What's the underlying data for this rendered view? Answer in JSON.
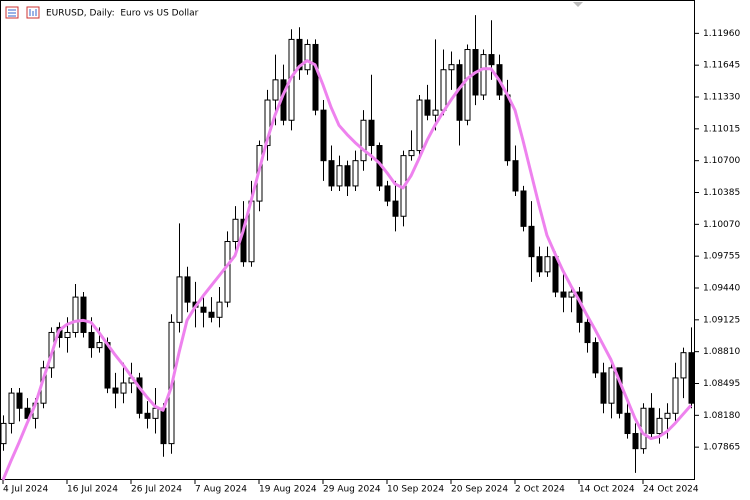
{
  "chart_data": {
    "type": "candlestick",
    "title": "EURUSD, Daily:  Euro vs US Dollar",
    "categories": [
      "4 Jul 2024",
      null,
      null,
      null,
      null,
      null,
      null,
      null,
      "16 Jul 2024",
      null,
      null,
      null,
      null,
      null,
      null,
      null,
      "26 Jul 2024",
      null,
      null,
      null,
      null,
      null,
      null,
      null,
      "7 Aug 2024",
      null,
      null,
      null,
      null,
      null,
      null,
      null,
      "19 Aug 2024",
      null,
      null,
      null,
      null,
      null,
      null,
      null,
      "29 Aug 2024",
      null,
      null,
      null,
      null,
      null,
      null,
      null,
      "10 Sep 2024",
      null,
      null,
      null,
      null,
      null,
      null,
      null,
      "20 Sep 2024",
      null,
      null,
      null,
      null,
      null,
      null,
      null,
      "2 Oct 2024",
      null,
      null,
      null,
      null,
      null,
      null,
      null,
      "14 Oct 2024",
      null,
      null,
      null,
      null,
      null,
      null,
      null,
      "24 Oct 2024",
      null,
      null,
      null,
      null,
      null,
      null
    ],
    "open": [
      1.079,
      1.081,
      1.084,
      1.0825,
      1.0815,
      1.083,
      1.0865,
      1.0905,
      1.0895,
      1.09,
      1.0935,
      1.09,
      1.0885,
      1.089,
      1.0845,
      1.084,
      1.085,
      1.0855,
      1.082,
      1.0815,
      1.0825,
      1.079,
      1.091,
      1.0955,
      1.093,
      1.0925,
      1.092,
      1.0915,
      1.093,
      1.099,
      1.1012,
      1.097,
      1.103,
      1.1085,
      1.113,
      1.115,
      1.111,
      1.119,
      1.116,
      1.1185,
      1.112,
      1.107,
      1.1045,
      1.1065,
      1.1045,
      1.107,
      1.111,
      1.1085,
      1.1045,
      1.103,
      1.1015,
      1.1075,
      1.108,
      1.113,
      1.1115,
      1.112,
      1.116,
      1.1165,
      1.111,
      1.118,
      1.1135,
      1.1175,
      1.1165,
      1.1135,
      1.107,
      1.104,
      1.1005,
      1.0975,
      1.096,
      1.0975,
      1.094,
      1.0935,
      1.094,
      1.091,
      1.089,
      1.086,
      1.083,
      1.0865,
      1.082,
      1.08,
      1.0785,
      1.0825,
      1.08,
      1.0815,
      1.082,
      1.0855,
      1.088
    ],
    "high": [
      1.0818,
      1.0845,
      1.0845,
      1.0835,
      1.0835,
      1.0872,
      1.0905,
      1.091,
      1.0915,
      1.0948,
      1.094,
      1.0915,
      1.0905,
      1.0895,
      1.086,
      1.087,
      1.087,
      1.086,
      1.0832,
      1.0845,
      1.083,
      1.0918,
      1.1008,
      1.0965,
      1.095,
      1.0935,
      1.0935,
      1.0945,
      1.1,
      1.1025,
      1.103,
      1.105,
      1.109,
      1.114,
      1.1175,
      1.1165,
      1.12,
      1.1202,
      1.119,
      1.119,
      1.113,
      1.1085,
      1.1075,
      1.107,
      1.108,
      1.112,
      1.1155,
      1.1088,
      1.105,
      1.105,
      1.108,
      1.11,
      1.1135,
      1.1145,
      1.119,
      1.118,
      1.1178,
      1.117,
      1.1185,
      1.1214,
      1.118,
      1.1209,
      1.1175,
      1.115,
      1.1085,
      1.1045,
      1.103,
      1.0985,
      1.0985,
      1.098,
      1.096,
      1.0945,
      1.0945,
      1.0915,
      1.0895,
      1.087,
      1.087,
      1.0865,
      1.083,
      1.081,
      1.083,
      1.084,
      1.0825,
      1.083,
      1.087,
      1.0885,
      1.0905
    ],
    "low": [
      1.0783,
      1.08,
      1.0812,
      1.081,
      1.0805,
      1.0825,
      1.0855,
      1.0885,
      1.088,
      1.0895,
      1.0895,
      1.0875,
      1.088,
      1.084,
      1.0825,
      1.083,
      1.084,
      1.0815,
      1.0805,
      1.08,
      1.0777,
      1.078,
      1.09,
      1.092,
      1.0905,
      1.0905,
      1.091,
      1.0905,
      1.0925,
      1.098,
      1.0965,
      1.0965,
      1.102,
      1.107,
      1.1105,
      1.1105,
      1.11,
      1.115,
      1.1155,
      1.1115,
      1.105,
      1.104,
      1.104,
      1.1035,
      1.104,
      1.106,
      1.107,
      1.104,
      1.1025,
      1.1,
      1.1005,
      1.107,
      1.1075,
      1.111,
      1.11,
      1.1115,
      1.114,
      1.1085,
      1.1105,
      1.1125,
      1.113,
      1.115,
      1.113,
      1.1065,
      1.1035,
      1.1,
      1.095,
      1.0955,
      1.0955,
      1.0935,
      1.092,
      1.092,
      1.09,
      1.088,
      1.0855,
      1.082,
      1.0815,
      1.0815,
      1.0795,
      1.0761,
      1.078,
      1.0795,
      1.079,
      1.0795,
      1.081,
      1.0835,
      1.0825
    ],
    "close": [
      1.081,
      1.084,
      1.0825,
      1.0815,
      1.083,
      1.0865,
      1.09,
      1.0895,
      1.09,
      1.0935,
      1.09,
      1.0885,
      1.089,
      1.0845,
      1.084,
      1.085,
      1.0855,
      1.082,
      1.0815,
      1.0825,
      1.079,
      1.091,
      1.0955,
      1.093,
      1.0925,
      1.092,
      1.0915,
      1.093,
      1.099,
      1.1012,
      1.097,
      1.103,
      1.1085,
      1.113,
      1.115,
      1.111,
      1.119,
      1.116,
      1.1185,
      1.112,
      1.107,
      1.1045,
      1.1065,
      1.1045,
      1.107,
      1.111,
      1.1085,
      1.1045,
      1.103,
      1.1015,
      1.1075,
      1.108,
      1.113,
      1.1115,
      1.112,
      1.116,
      1.1165,
      1.111,
      1.118,
      1.1135,
      1.1175,
      1.1165,
      1.1135,
      1.107,
      1.104,
      1.1005,
      1.0975,
      1.096,
      1.0975,
      1.094,
      1.0935,
      1.094,
      1.091,
      1.089,
      1.086,
      1.083,
      1.0865,
      1.082,
      1.08,
      1.0785,
      1.0825,
      1.08,
      1.0815,
      1.082,
      1.0855,
      1.088,
      1.083
    ],
    "up_color": "#ffffff",
    "down_color": "#000000",
    "indicator": {
      "color": "#ee82ee",
      "values": [
        1.0754,
        1.0773,
        1.0791,
        1.081,
        1.0828,
        1.0853,
        1.0877,
        1.0902,
        1.0908,
        1.0911,
        1.0912,
        1.091,
        1.09,
        1.0889,
        1.0878,
        1.0868,
        1.0857,
        1.0846,
        1.0836,
        1.0827,
        1.0823,
        1.0845,
        1.088,
        1.0912,
        1.0925,
        1.0936,
        1.0946,
        1.0956,
        1.0966,
        1.0976,
        1.1,
        1.103,
        1.106,
        1.109,
        1.1115,
        1.1135,
        1.1152,
        1.1163,
        1.1169,
        1.1165,
        1.1145,
        1.1123,
        1.1105,
        1.1096,
        1.1088,
        1.1081,
        1.1075,
        1.1068,
        1.1058,
        1.1047,
        1.1043,
        1.1055,
        1.1072,
        1.109,
        1.1105,
        1.1118,
        1.113,
        1.1141,
        1.1151,
        1.1157,
        1.1161,
        1.1161,
        1.115,
        1.1136,
        1.112,
        1.109,
        1.1058,
        1.1026,
        1.0996,
        1.0978,
        1.0961,
        1.0946,
        1.0932,
        1.0917,
        1.0903,
        1.0888,
        1.0873,
        1.0853,
        1.0834,
        1.0815,
        1.08,
        1.0795,
        1.0797,
        1.0802,
        1.081,
        1.0819,
        1.0828
      ]
    },
    "ylim": [
      1.0754,
      1.1229
    ],
    "yticks": [
      {
        "value": 1.1196,
        "label": "1.11960"
      },
      1.11645,
      {
        "value": 1.1133,
        "label": "1.11330"
      },
      1.11015,
      {
        "value": 1.107,
        "label": "1.10700"
      },
      1.10385,
      {
        "value": 1.1007,
        "label": "1.10070"
      },
      1.09755,
      {
        "value": 1.0944,
        "label": "1.09440"
      },
      1.09125,
      {
        "value": 1.0881,
        "label": "1.08810"
      },
      1.08495,
      {
        "value": 1.0818,
        "label": "1.08180"
      },
      1.07865
    ]
  }
}
